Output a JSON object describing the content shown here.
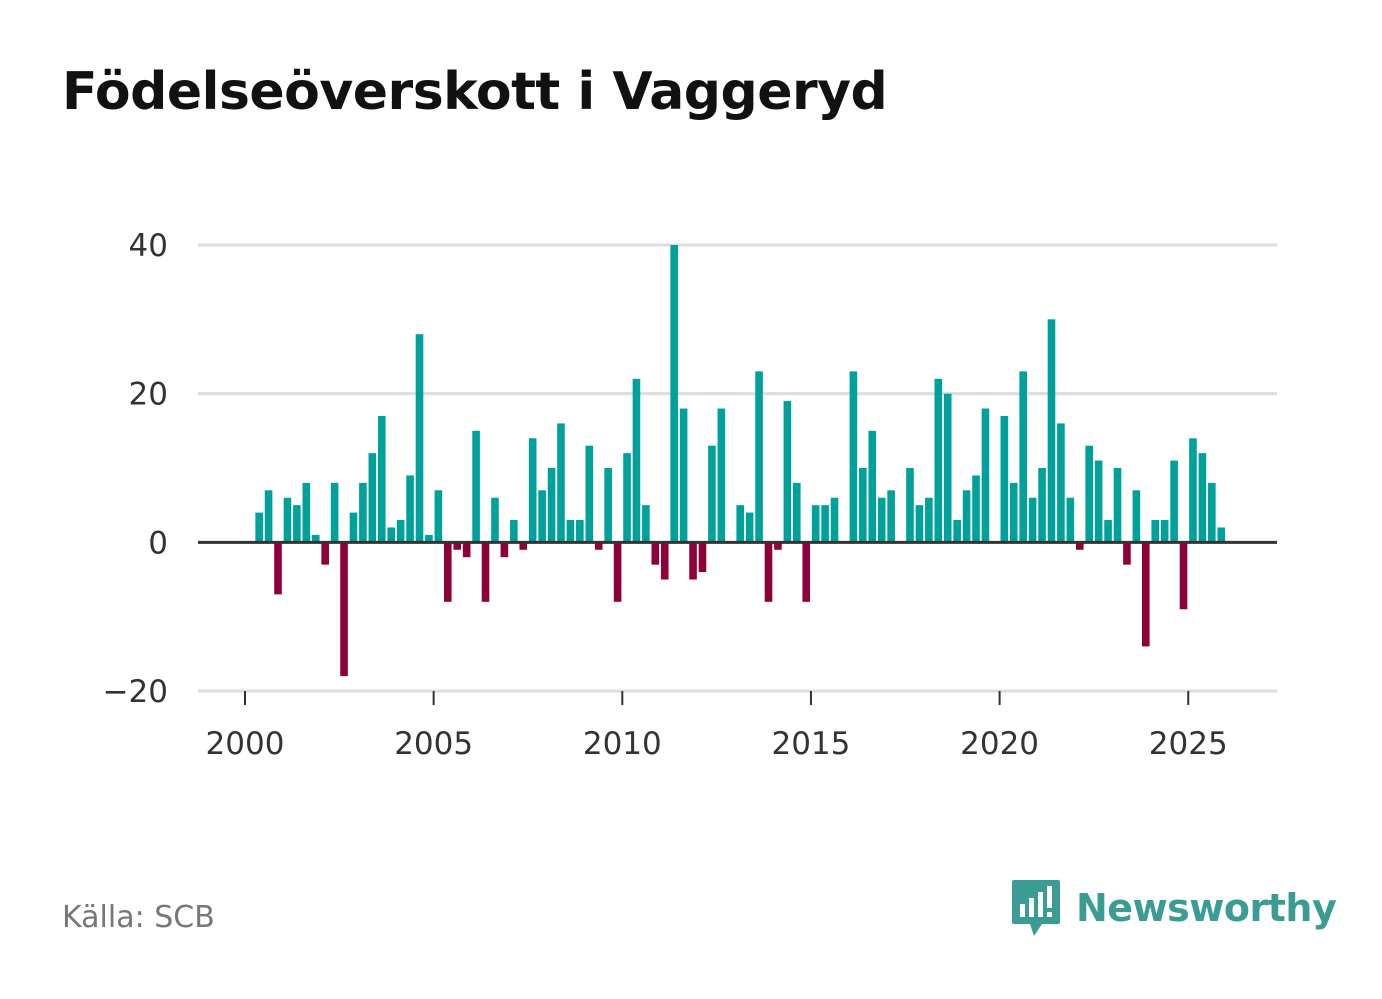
{
  "title": "Födelseöverskott i Vaggeryd",
  "source": "Källa: SCB",
  "brand": {
    "name": "Newsworthy",
    "icon": "bar-chart-speech-bubble-icon"
  },
  "colors": {
    "positive": "#00a19a",
    "negative": "#8e0038",
    "grid": "#dddddd",
    "zero": "#333333",
    "brand": "#3a9c93"
  },
  "chart_data": {
    "type": "bar",
    "title": "Födelseöverskott i Vaggeryd",
    "xlabel": "",
    "ylabel": "",
    "ylim": [
      -20,
      40
    ],
    "xlim": [
      1999.4,
      2027.25
    ],
    "yticks": [
      40,
      20,
      0,
      -20
    ],
    "ytick_labels": [
      "40",
      "20",
      "0",
      "−20"
    ],
    "xticks": [
      2000,
      2005,
      2010,
      2015,
      2020,
      2025
    ],
    "xtick_labels": [
      "2000",
      "2005",
      "2010",
      "2015",
      "2020",
      "2025"
    ],
    "grid": true,
    "frequency": "quarterly",
    "start": "2000Q1",
    "values": [
      4,
      7,
      -7,
      6,
      5,
      8,
      1,
      -3,
      8,
      -18,
      4,
      8,
      12,
      17,
      2,
      3,
      9,
      28,
      1,
      7,
      -8,
      -1,
      -2,
      15,
      -8,
      6,
      -2,
      3,
      -1,
      14,
      7,
      10,
      16,
      3,
      3,
      13,
      -1,
      10,
      -8,
      12,
      22,
      5,
      -3,
      -5,
      40,
      18,
      -5,
      -4,
      13,
      18,
      0,
      5,
      4,
      23,
      -8,
      -1,
      19,
      8,
      -8,
      5,
      5,
      6,
      0,
      23,
      10,
      15,
      6,
      7,
      0,
      10,
      5,
      6,
      22,
      20,
      3,
      7,
      9,
      18,
      0,
      17,
      8,
      23,
      6,
      10,
      30,
      16,
      6,
      -1,
      13,
      11,
      3,
      10,
      -3,
      7,
      -14,
      3,
      3,
      11,
      -9,
      14,
      12,
      8,
      2
    ]
  }
}
